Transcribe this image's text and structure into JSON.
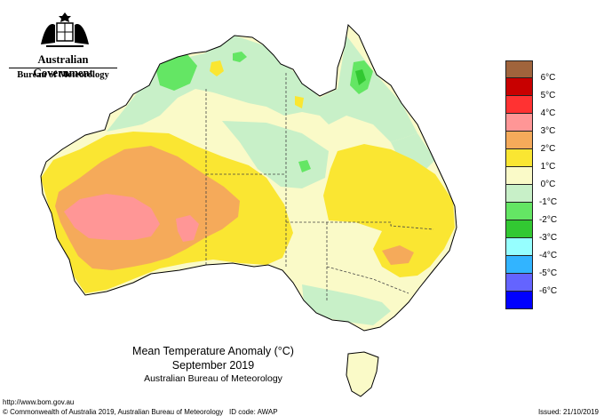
{
  "header": {
    "government": "Australian Government",
    "bureau": "Bureau of Meteorology"
  },
  "icons": {
    "crest": "coat-of-arms-icon"
  },
  "map": {
    "title": "Mean Temperature Anomaly (°C)",
    "period": "September 2019",
    "source": "Australian Bureau of Meteorology"
  },
  "legend": {
    "levels": [
      {
        "label": "6°C",
        "color": "#a0643c"
      },
      {
        "label": "5°C",
        "color": "#c80000"
      },
      {
        "label": "4°C",
        "color": "#ff3232"
      },
      {
        "label": "3°C",
        "color": "#ff9696"
      },
      {
        "label": "2°C",
        "color": "#f5aa5a"
      },
      {
        "label": "1°C",
        "color": "#fae632"
      },
      {
        "label": "0°C",
        "color": "#fafac8"
      },
      {
        "label": "-1°C",
        "color": "#c8f0c8"
      },
      {
        "label": "-2°C",
        "color": "#64e664"
      },
      {
        "label": "-3°C",
        "color": "#32c832"
      },
      {
        "label": "-4°C",
        "color": "#96ffff"
      },
      {
        "label": "-5°C",
        "color": "#32b4ff"
      },
      {
        "label": "-6°C",
        "color": "#6464ff"
      },
      {
        "label": "",
        "color": "#0000ff"
      }
    ]
  },
  "footer": {
    "url": "http://www.bom.gov.au",
    "copyright": "© Commonwealth of Australia 2019, Australian Bureau of Meteorology",
    "id_code": "ID code: AWAP",
    "issued": "Issued: 21/10/2019"
  }
}
